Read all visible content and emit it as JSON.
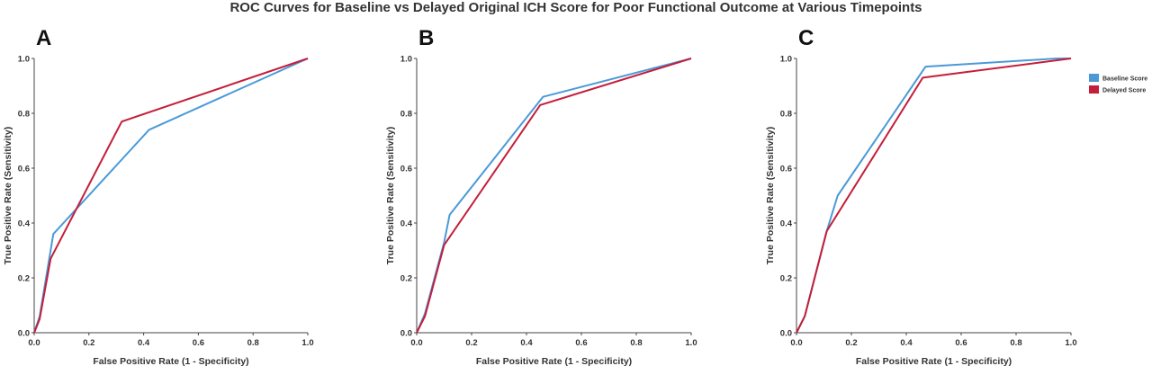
{
  "figure": {
    "title": "ROC Curves for Baseline vs Delayed Original ICH Score for Poor Functional Outcome at Various Timepoints"
  },
  "colors": {
    "baseline": "#4a9ad8",
    "delayed": "#c41e3a"
  },
  "legend": {
    "entries": [
      "Baseline Score",
      "Delayed Score"
    ]
  },
  "chart_data": [
    {
      "type": "line",
      "panel": "A",
      "xlabel": "False Positive Rate (1 - Specificity)",
      "ylabel": "True Positive Rate (Sensitivity)",
      "xlim": [
        0,
        1
      ],
      "ylim": [
        0,
        1
      ],
      "xticks": [
        "0.0",
        "0.2",
        "0.4",
        "0.6",
        "0.8",
        "1.0"
      ],
      "yticks": [
        "0.0",
        "0.2",
        "0.4",
        "0.6",
        "0.8",
        "1.0"
      ],
      "grid": false,
      "series": [
        {
          "name": "Baseline Score",
          "x": [
            0.0,
            0.02,
            0.07,
            0.42,
            1.0
          ],
          "y": [
            0.0,
            0.06,
            0.36,
            0.74,
            1.0
          ]
        },
        {
          "name": "Delayed Score",
          "x": [
            0.0,
            0.02,
            0.06,
            0.32,
            1.0
          ],
          "y": [
            0.0,
            0.05,
            0.27,
            0.77,
            1.0
          ]
        }
      ]
    },
    {
      "type": "line",
      "panel": "B",
      "xlabel": "False Positive Rate (1 - Specificity)",
      "ylabel": "True Positive Rate (Sensitivity)",
      "xlim": [
        0,
        1
      ],
      "ylim": [
        0,
        1
      ],
      "xticks": [
        "0.0",
        "0.2",
        "0.4",
        "0.6",
        "0.8",
        "1.0"
      ],
      "yticks": [
        "0.0",
        "0.2",
        "0.4",
        "0.6",
        "0.8",
        "1.0"
      ],
      "grid": false,
      "series": [
        {
          "name": "Baseline Score",
          "x": [
            0.0,
            0.03,
            0.1,
            0.12,
            0.46,
            1.0
          ],
          "y": [
            0.0,
            0.07,
            0.33,
            0.43,
            0.86,
            1.0
          ]
        },
        {
          "name": "Delayed Score",
          "x": [
            0.0,
            0.03,
            0.1,
            0.45,
            1.0
          ],
          "y": [
            0.0,
            0.06,
            0.32,
            0.83,
            1.0
          ]
        }
      ]
    },
    {
      "type": "line",
      "panel": "C",
      "xlabel": "False Positive Rate (1 - Specificity)",
      "ylabel": "True Positive Rate (Sensitivity)",
      "xlim": [
        0,
        1
      ],
      "ylim": [
        0,
        1
      ],
      "xticks": [
        "0.0",
        "0.2",
        "0.4",
        "0.6",
        "0.8",
        "1.0"
      ],
      "yticks": [
        "0.0",
        "0.2",
        "0.4",
        "0.6",
        "0.8",
        "1.0"
      ],
      "grid": false,
      "legend_position": "right",
      "series": [
        {
          "name": "Baseline Score",
          "x": [
            0.0,
            0.03,
            0.11,
            0.15,
            0.47,
            0.95,
            1.0
          ],
          "y": [
            0.0,
            0.06,
            0.37,
            0.5,
            0.97,
            1.0,
            1.0
          ]
        },
        {
          "name": "Delayed Score",
          "x": [
            0.0,
            0.03,
            0.11,
            0.46,
            1.0
          ],
          "y": [
            0.0,
            0.06,
            0.37,
            0.93,
            1.0
          ]
        }
      ]
    }
  ]
}
